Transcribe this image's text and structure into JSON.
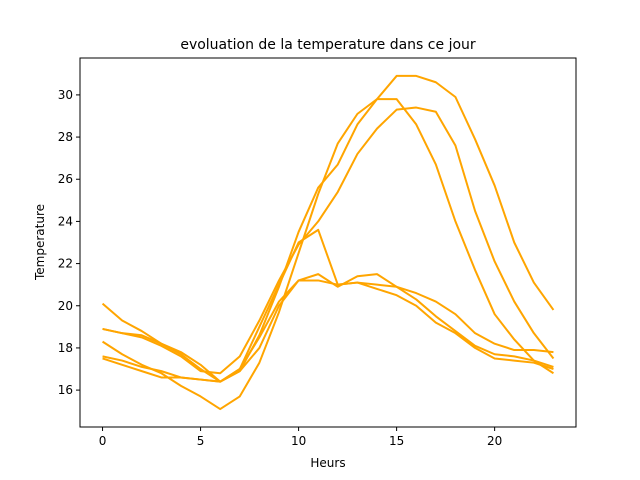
{
  "chart_data": {
    "type": "line",
    "title": "evoluation de la temperature dans ce jour",
    "xlabel": "Heurs",
    "ylabel": "Temperature",
    "xlim": [
      -1.15,
      24.15
    ],
    "ylim": [
      14.25,
      31.75
    ],
    "xticks": [
      0,
      5,
      10,
      15,
      20
    ],
    "yticks": [
      16,
      18,
      20,
      22,
      24,
      26,
      28,
      30
    ],
    "grid": false,
    "line_color": "#ffa500",
    "x": [
      0,
      1,
      2,
      3,
      4,
      5,
      6,
      7,
      8,
      9,
      10,
      11,
      12,
      13,
      14,
      15,
      16,
      17,
      18,
      19,
      20,
      21,
      22,
      23
    ],
    "series": [
      {
        "values": [
          18.9,
          18.7,
          18.6,
          18.2,
          17.8,
          17.2,
          16.4,
          17.0,
          18.5,
          20.2,
          21.2,
          21.5,
          20.9,
          21.4,
          21.5,
          20.9,
          20.3,
          19.5,
          18.8,
          18.1,
          17.7,
          17.6,
          17.4,
          17.1
        ]
      },
      {
        "values": [
          17.6,
          17.4,
          17.1,
          16.9,
          16.6,
          16.5,
          16.4,
          16.9,
          18.0,
          20.0,
          21.2,
          21.2,
          21.0,
          21.1,
          21.0,
          20.9,
          20.6,
          20.2,
          19.6,
          18.7,
          18.2,
          17.9,
          17.9,
          17.8
        ]
      },
      {
        "values": [
          17.5,
          17.2,
          16.9,
          16.6,
          16.6,
          16.5,
          16.4,
          17.0,
          19.0,
          21.0,
          23.0,
          23.6,
          21.0,
          21.1,
          20.8,
          20.5,
          20.0,
          19.2,
          18.7,
          18.0,
          17.5,
          17.4,
          17.3,
          17.0
        ]
      },
      {
        "values": [
          20.1,
          19.3,
          18.8,
          18.2,
          17.7,
          17.0,
          16.4,
          16.9,
          18.6,
          20.9,
          23.5,
          25.6,
          26.7,
          28.6,
          29.8,
          30.9,
          30.9,
          30.6,
          29.9,
          27.9,
          25.7,
          23.0,
          21.1,
          19.8
        ]
      },
      {
        "values": [
          18.9,
          18.7,
          18.5,
          18.1,
          17.6,
          16.9,
          16.8,
          17.6,
          19.3,
          21.2,
          22.9,
          24.0,
          25.4,
          27.2,
          28.4,
          29.3,
          29.4,
          29.2,
          27.6,
          24.5,
          22.1,
          20.2,
          18.7,
          17.5
        ]
      },
      {
        "values": [
          18.3,
          17.7,
          17.2,
          16.8,
          16.2,
          15.7,
          15.1,
          15.7,
          17.3,
          19.7,
          22.5,
          25.3,
          27.7,
          29.1,
          29.8,
          29.8,
          28.6,
          26.7,
          24.0,
          21.7,
          19.6,
          18.4,
          17.4,
          16.8
        ]
      }
    ]
  }
}
